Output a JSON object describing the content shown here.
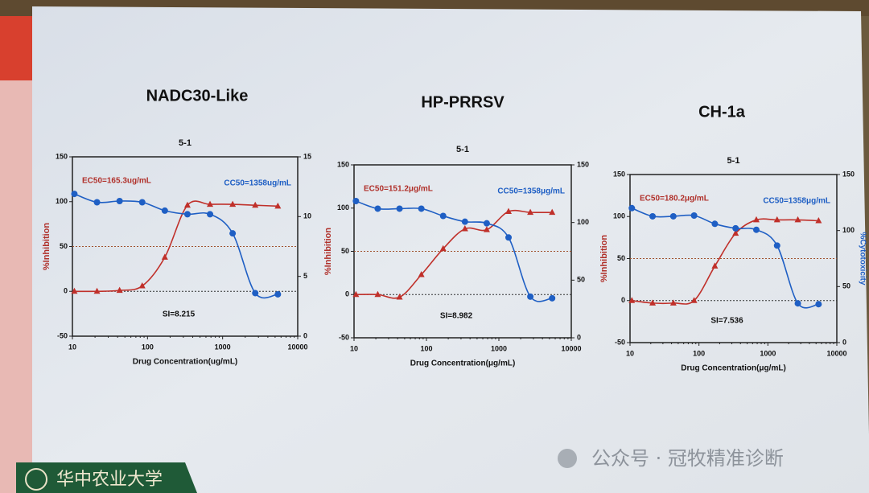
{
  "chart_data": [
    {
      "type": "scatter",
      "title": "NADC30-Like",
      "subtitle": "5-1",
      "x_label": "Drug Concentration(ug/mL)",
      "y_label": "%Inhibition",
      "annotations": {
        "ec50": "EC50=165.3ug/mL",
        "cc50": "CC50=1358ug/mL",
        "si": "SI=8.215"
      },
      "xscale": "log",
      "xlim": [
        10,
        10000
      ],
      "xticks": [
        10,
        100,
        1000,
        10000
      ],
      "ylim": [
        -50,
        150
      ],
      "yticks": [
        -50,
        0,
        50,
        100,
        150
      ],
      "y2lim": [
        0,
        15
      ],
      "y2ticks": [
        0,
        5,
        10,
        15
      ],
      "hlines": [
        50,
        0
      ],
      "x": [
        10.625,
        21.25,
        42.5,
        85,
        170,
        340,
        680,
        1360,
        2720,
        5440
      ],
      "series": [
        {
          "color": "#c0302a",
          "marker": "triangle",
          "values": [
            0,
            0,
            1,
            6,
            38,
            96,
            97,
            97,
            96,
            95
          ]
        },
        {
          "color": "#1f5fc4",
          "marker": "circle",
          "axis": "y2",
          "values": [
            11.9,
            11.2,
            11.3,
            11.2,
            10.5,
            10.2,
            10.2,
            8.6,
            3.6,
            3.5
          ]
        }
      ]
    },
    {
      "type": "scatter",
      "title": "HP-PRRSV",
      "subtitle": "5-1",
      "x_label": "Drug Concentration(μg/mL)",
      "y_label": "%Inhibition",
      "annotations": {
        "ec50": "EC50=151.2μg/mL",
        "cc50": "CC50=1358μg/mL",
        "si": "SI=8.982"
      },
      "xscale": "log",
      "xlim": [
        10,
        10000
      ],
      "xticks": [
        10,
        100,
        1000,
        10000
      ],
      "ylim": [
        -50,
        150
      ],
      "yticks": [
        -50,
        0,
        50,
        100,
        150
      ],
      "y2lim": [
        0,
        150
      ],
      "y2ticks": [
        0,
        50,
        100,
        150
      ],
      "hlines": [
        50,
        0
      ],
      "x": [
        10.625,
        21.25,
        42.5,
        85,
        170,
        340,
        680,
        1360,
        2720,
        5440
      ],
      "series": [
        {
          "color": "#c0302a",
          "marker": "triangle",
          "values": [
            0,
            0,
            -3,
            23,
            53,
            76,
            75,
            96,
            95,
            95
          ]
        },
        {
          "color": "#1f5fc4",
          "marker": "circle",
          "axis": "y2",
          "values": [
            118.6,
            112,
            112,
            112,
            105.7,
            100.7,
            99.3,
            87,
            35.7,
            34.3
          ]
        }
      ]
    },
    {
      "type": "scatter",
      "title": "CH-1a",
      "subtitle": "5-1",
      "x_label": "Drug Concentration(μg/mL)",
      "y_label": "%Inhibition",
      "y2_label": "%Cytotoxicity",
      "annotations": {
        "ec50": "EC50=180.2μg/mL",
        "cc50": "CC50=1358μg/mL",
        "si": "SI=7.536"
      },
      "xscale": "log",
      "xlim": [
        10,
        10000
      ],
      "xticks": [
        10,
        100,
        1000,
        10000
      ],
      "ylim": [
        -50,
        150
      ],
      "yticks": [
        -50,
        0,
        50,
        100,
        150
      ],
      "y2lim": [
        0,
        150
      ],
      "y2ticks": [
        0,
        50,
        100,
        150
      ],
      "hlines": [
        50,
        0
      ],
      "x": [
        10.625,
        21.25,
        42.5,
        85,
        170,
        340,
        680,
        1360,
        2720,
        5440
      ],
      "series": [
        {
          "color": "#c0302a",
          "marker": "triangle",
          "values": [
            0,
            -3,
            -3,
            0,
            41,
            80,
            96,
            96,
            96,
            95
          ]
        },
        {
          "color": "#1f5fc4",
          "marker": "circle",
          "axis": "y2",
          "values": [
            120,
            112.7,
            112.7,
            113.4,
            106,
            102,
            100.7,
            86.6,
            35,
            34.3
          ]
        }
      ]
    }
  ],
  "footer": {
    "logo_text": "华中农业大学",
    "watermark": "公众号 · 冠牧精准诊断"
  }
}
